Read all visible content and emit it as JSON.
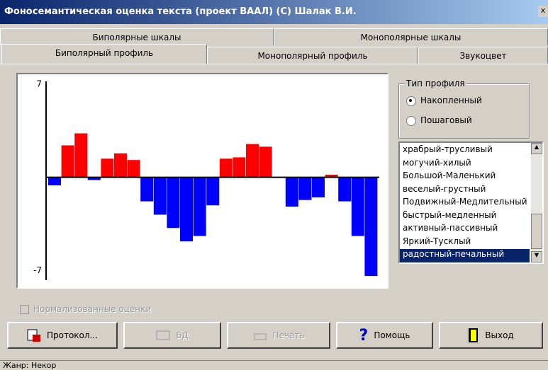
{
  "window": {
    "title": "Фоносемантическая оценка текста (проект ВААЛ) (С) Шалак В.И.",
    "close": "x"
  },
  "tabs_top": [
    "Биполярные шкалы",
    "Монополярные шкалы"
  ],
  "tabs_bottom": [
    "Биполярный профиль",
    "Монополярный профиль",
    "Звукоцвет"
  ],
  "profile_type": {
    "title": "Тип профиля",
    "options": [
      "Накопленный",
      "Пошаговый"
    ]
  },
  "scales_list": [
    "храбрый-трусливый",
    "могучий-хилый",
    "Большой-Маленький",
    "веселый-грустный",
    "Подвижный-Медлительный",
    "быстрый-медленный",
    "активный-пассивный",
    "Яркий-Тусклый",
    "радостный-печальный"
  ],
  "normalized_checkbox": "Нормализованные оценки",
  "buttons": [
    "Протокол...",
    "БД",
    "Печать",
    "Помощь",
    "Выход"
  ],
  "status": "Жанр: Некор",
  "chart_data": {
    "type": "bar",
    "values": [
      -0.6,
      2.4,
      3.3,
      -0.2,
      1.4,
      1.8,
      1.3,
      -1.8,
      -2.8,
      -3.8,
      -4.8,
      -4.4,
      -2.1,
      1.4,
      1.5,
      2.5,
      2.3,
      0,
      -2.2,
      -1.7,
      -1.5,
      0.2,
      -1.8,
      -4.4,
      -7.4
    ],
    "positive_color": "#ff0000",
    "negative_color": "#0000ff",
    "ylim": [
      -7.5,
      7.2
    ],
    "yticks": [
      7,
      -7
    ]
  }
}
